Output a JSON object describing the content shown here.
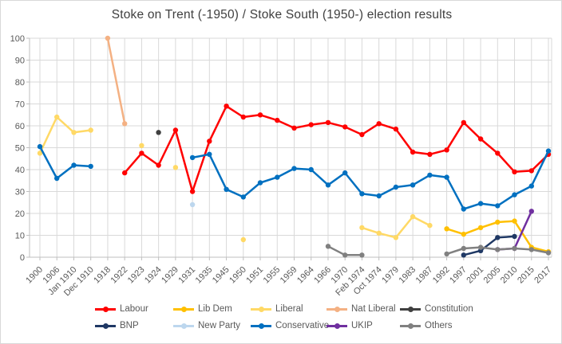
{
  "title": "Stoke on Trent (-1950) / Stoke South (1950-) election results",
  "chart_data": {
    "type": "line",
    "title": "Stoke on Trent (-1950) / Stoke South (1950-) election results",
    "xlabel": "",
    "ylabel": "",
    "grid": true,
    "legend_position": "bottom",
    "ylim": [
      0,
      100
    ],
    "y_ticks": [
      0,
      10,
      20,
      30,
      40,
      50,
      60,
      70,
      80,
      90,
      100
    ],
    "categories": [
      "1900",
      "1906",
      "Jan 1910",
      "Dec 1910",
      "1918",
      "1922",
      "1923",
      "1924",
      "1929",
      "1931",
      "1935",
      "1945",
      "1950",
      "1951",
      "1955",
      "1959",
      "1964",
      "1966",
      "1970",
      "Feb 1974",
      "Oct 1974",
      "1979",
      "1983",
      "1987",
      "1992",
      "1997",
      "2001",
      "2005",
      "2010",
      "2015",
      "2017"
    ],
    "series": [
      {
        "name": "Labour",
        "color": "#ff0000",
        "values": [
          null,
          null,
          null,
          null,
          null,
          38.5,
          47.5,
          42,
          58,
          30,
          53,
          69,
          64,
          65,
          62.5,
          59,
          60.5,
          61.5,
          59.5,
          56,
          61,
          58.5,
          48,
          47,
          49,
          61.5,
          54,
          47.5,
          39,
          39.5,
          47
        ]
      },
      {
        "name": "Lib Dem",
        "color": "#ffc000",
        "values": [
          null,
          null,
          null,
          null,
          null,
          null,
          null,
          null,
          null,
          null,
          null,
          null,
          null,
          null,
          null,
          null,
          null,
          null,
          null,
          null,
          null,
          null,
          null,
          null,
          13,
          10.5,
          13.5,
          16,
          16.5,
          4.5,
          2.5
        ]
      },
      {
        "name": "Liberal",
        "color": "#ffd966",
        "values": [
          47.5,
          64,
          57,
          58,
          null,
          null,
          51,
          null,
          41,
          null,
          null,
          null,
          8,
          null,
          null,
          null,
          null,
          null,
          null,
          13.5,
          11,
          9,
          18.5,
          14.5,
          null,
          null,
          null,
          null,
          null,
          null,
          null
        ]
      },
      {
        "name": "Nat Liberal",
        "color": "#f4b183",
        "values": [
          null,
          null,
          null,
          null,
          100,
          61,
          null,
          null,
          null,
          null,
          null,
          null,
          null,
          null,
          null,
          null,
          null,
          null,
          null,
          null,
          null,
          null,
          null,
          null,
          null,
          null,
          null,
          null,
          null,
          null,
          null
        ]
      },
      {
        "name": "Constitution",
        "color": "#404040",
        "values": [
          null,
          null,
          null,
          null,
          null,
          null,
          null,
          57,
          null,
          null,
          null,
          null,
          null,
          null,
          null,
          null,
          null,
          null,
          null,
          null,
          null,
          null,
          null,
          null,
          null,
          null,
          null,
          null,
          null,
          null,
          null
        ]
      },
      {
        "name": "BNP",
        "color": "#1f3864",
        "values": [
          null,
          null,
          null,
          null,
          null,
          null,
          null,
          null,
          null,
          null,
          null,
          null,
          null,
          null,
          null,
          null,
          null,
          null,
          null,
          null,
          null,
          null,
          null,
          null,
          null,
          1,
          3,
          9,
          9.5,
          null,
          null
        ]
      },
      {
        "name": "New Party",
        "color": "#bdd7ee",
        "values": [
          null,
          null,
          null,
          null,
          null,
          null,
          null,
          null,
          null,
          24,
          null,
          null,
          null,
          null,
          null,
          null,
          null,
          null,
          null,
          null,
          null,
          null,
          null,
          null,
          null,
          null,
          null,
          null,
          null,
          null,
          null
        ]
      },
      {
        "name": "Conservative",
        "color": "#0070c0",
        "values": [
          50.5,
          36,
          42,
          41.5,
          null,
          null,
          null,
          null,
          null,
          45.5,
          47,
          31,
          27.5,
          34,
          36.5,
          40.5,
          40,
          33,
          38.5,
          29,
          28,
          32,
          33,
          37.5,
          36.5,
          22,
          24.5,
          23.5,
          28.5,
          32.5,
          48.5
        ]
      },
      {
        "name": "UKIP",
        "color": "#7030a0",
        "values": [
          null,
          null,
          null,
          null,
          null,
          null,
          null,
          null,
          null,
          null,
          null,
          null,
          null,
          null,
          null,
          null,
          null,
          null,
          null,
          null,
          null,
          null,
          null,
          null,
          null,
          null,
          null,
          3.5,
          4,
          21,
          null
        ]
      },
      {
        "name": "Others",
        "color": "#808080",
        "values": [
          null,
          null,
          null,
          null,
          null,
          null,
          null,
          null,
          null,
          null,
          null,
          null,
          null,
          null,
          null,
          null,
          null,
          5,
          1,
          1,
          null,
          null,
          null,
          null,
          1.5,
          4,
          4.5,
          3.5,
          4,
          3.5,
          2
        ]
      }
    ],
    "legend_rows": [
      [
        "Labour",
        "Lib Dem",
        "Liberal",
        "Nat Liberal",
        "Constitution"
      ],
      [
        "BNP",
        "New Party",
        "Conservative",
        "UKIP",
        "Others"
      ]
    ],
    "style": {
      "grid_color": "#d9d9d9",
      "axis_color": "#bfbfbf",
      "tick_label_color": "#595959",
      "title_color": "#3f3f3f"
    }
  }
}
